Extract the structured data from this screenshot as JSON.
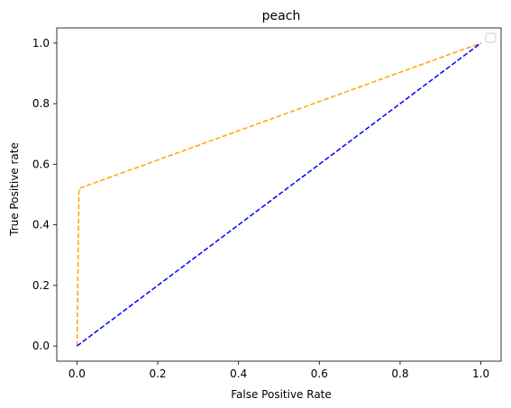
{
  "chart_data": {
    "type": "line",
    "title": "peach",
    "xlabel": "False Positive Rate",
    "ylabel": "True Positive rate",
    "xlim": [
      -0.05,
      1.05
    ],
    "ylim": [
      -0.05,
      1.05
    ],
    "x_ticks": [
      0.0,
      0.2,
      0.4,
      0.6,
      0.8,
      1.0
    ],
    "y_ticks": [
      0.0,
      0.2,
      0.4,
      0.6,
      0.8,
      1.0
    ],
    "x_tick_labels": [
      "0.0",
      "0.2",
      "0.4",
      "0.6",
      "0.8",
      "1.0"
    ],
    "y_tick_labels": [
      "0.0",
      "0.2",
      "0.4",
      "0.6",
      "0.8",
      "1.0"
    ],
    "grid": false,
    "legend": {
      "placement": "top-right",
      "entries": []
    },
    "series": [
      {
        "color": "#ffa500",
        "line_style": "dashed",
        "x": [
          0.0,
          0.005,
          1.0
        ],
        "y": [
          0.0,
          0.52,
          1.0
        ]
      },
      {
        "color": "#0000ff",
        "line_style": "dashed",
        "x": [
          0.0,
          1.0
        ],
        "y": [
          0.0,
          1.0
        ]
      }
    ]
  }
}
